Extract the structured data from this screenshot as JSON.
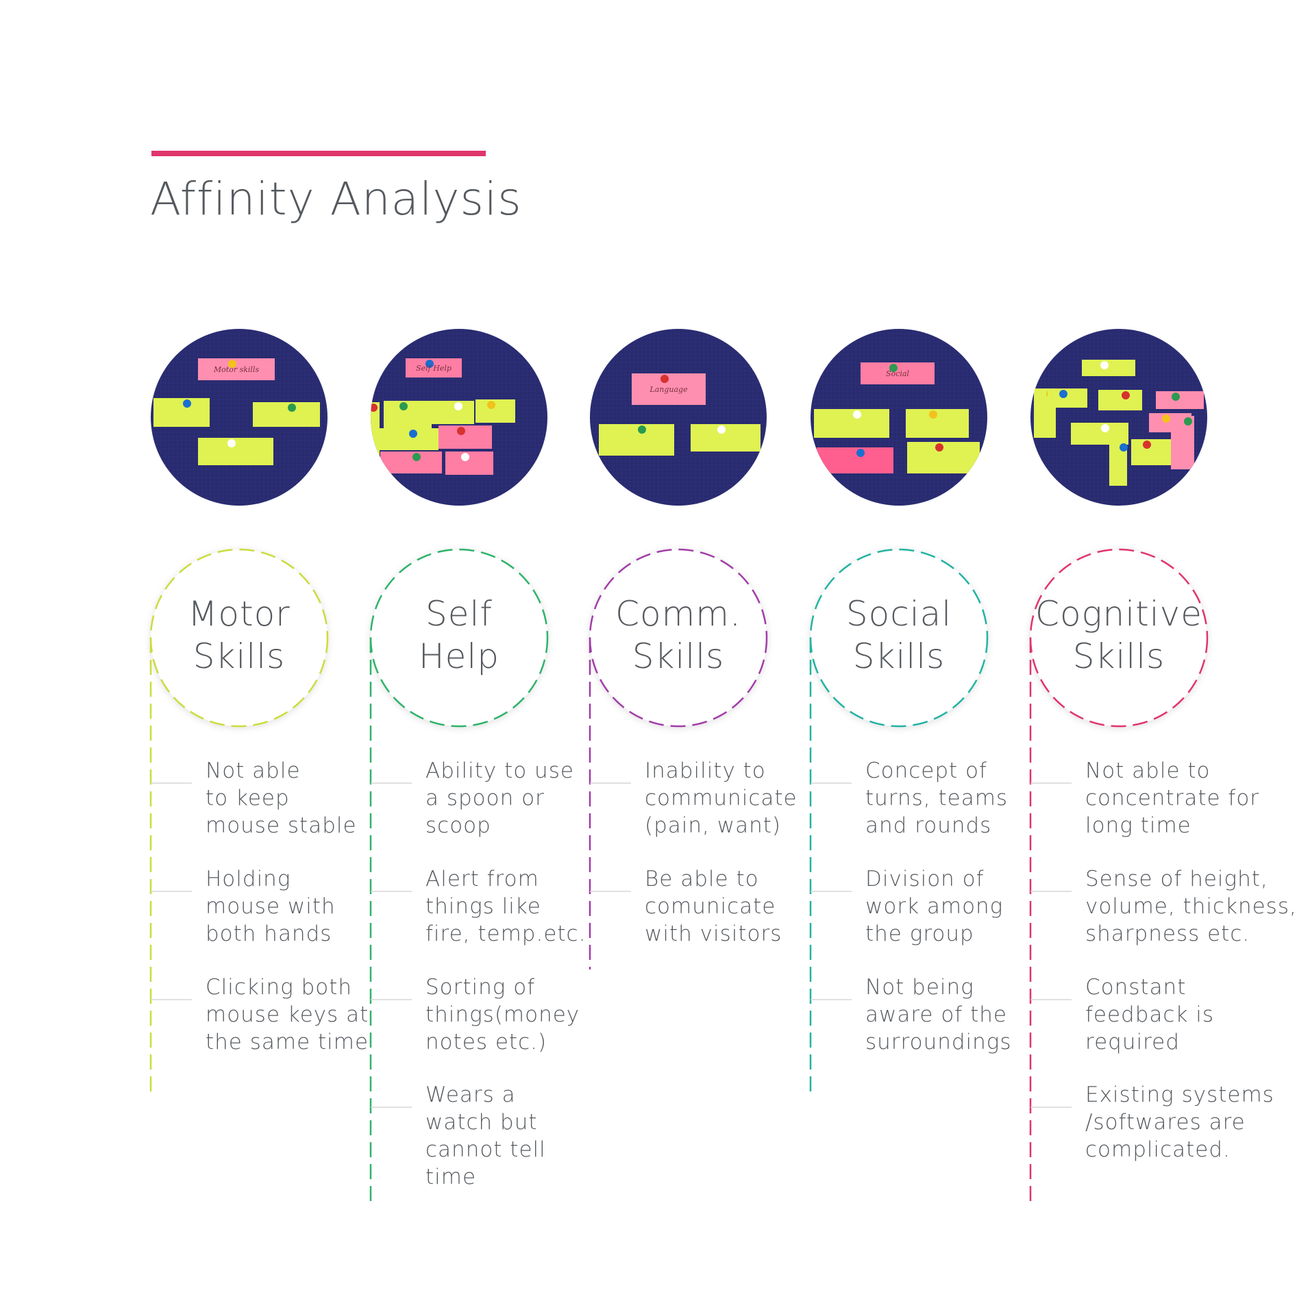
{
  "page": {
    "title": "Affinity Analysis",
    "accent_color": "#e0356c"
  },
  "categories": [
    {
      "id": "motor",
      "title_lines": [
        "Motor",
        "Skills"
      ],
      "color": "#cbdc3c",
      "photo_notes": [
        "Motor skills"
      ],
      "notes": [
        [
          "Not able",
          "to keep",
          "mouse stable"
        ],
        [
          "Holding",
          "mouse with",
          "both hands"
        ],
        [
          "Clicking both",
          "mouse keys at",
          "the same time"
        ]
      ]
    },
    {
      "id": "self-help",
      "title_lines": [
        "Self",
        "Help"
      ],
      "color": "#2fb36a",
      "photo_notes": [
        "Self Help"
      ],
      "notes": [
        [
          "Ability to use",
          "a spoon or",
          "scoop"
        ],
        [
          "Alert from",
          "things like",
          "fire, temp.etc."
        ],
        [
          "Sorting of",
          "things(money",
          "notes etc.)"
        ],
        [
          "Wears a",
          "watch but",
          "cannot tell",
          "time"
        ]
      ]
    },
    {
      "id": "comm",
      "title_lines": [
        "Comm.",
        "Skills"
      ],
      "color": "#a23ca8",
      "photo_notes": [
        "Language"
      ],
      "notes": [
        [
          "Inability to",
          "communicate",
          "(pain, want)"
        ],
        [
          "Be able to",
          "comunicate",
          "with visitors"
        ]
      ]
    },
    {
      "id": "social",
      "title_lines": [
        "Social",
        "Skills"
      ],
      "color": "#22b3a2",
      "photo_notes": [
        "Social"
      ],
      "notes": [
        [
          "Concept of",
          "turns, teams",
          "and rounds"
        ],
        [
          "Division of",
          "work among",
          "the group"
        ],
        [
          "Not being",
          "aware of the",
          "surroundings"
        ]
      ]
    },
    {
      "id": "cognitive",
      "title_lines": [
        "Cognitive",
        "Skills"
      ],
      "color": "#e0356c",
      "photo_notes": [],
      "notes": [
        [
          "Not able to",
          "concentrate for",
          "long time"
        ],
        [
          "Sense of height,",
          "volume, thickness,",
          "sharpness etc."
        ],
        [
          "Constant",
          "feedback is",
          "required"
        ],
        [
          "Existing systems",
          "/softwares are",
          "complicated."
        ]
      ]
    }
  ]
}
